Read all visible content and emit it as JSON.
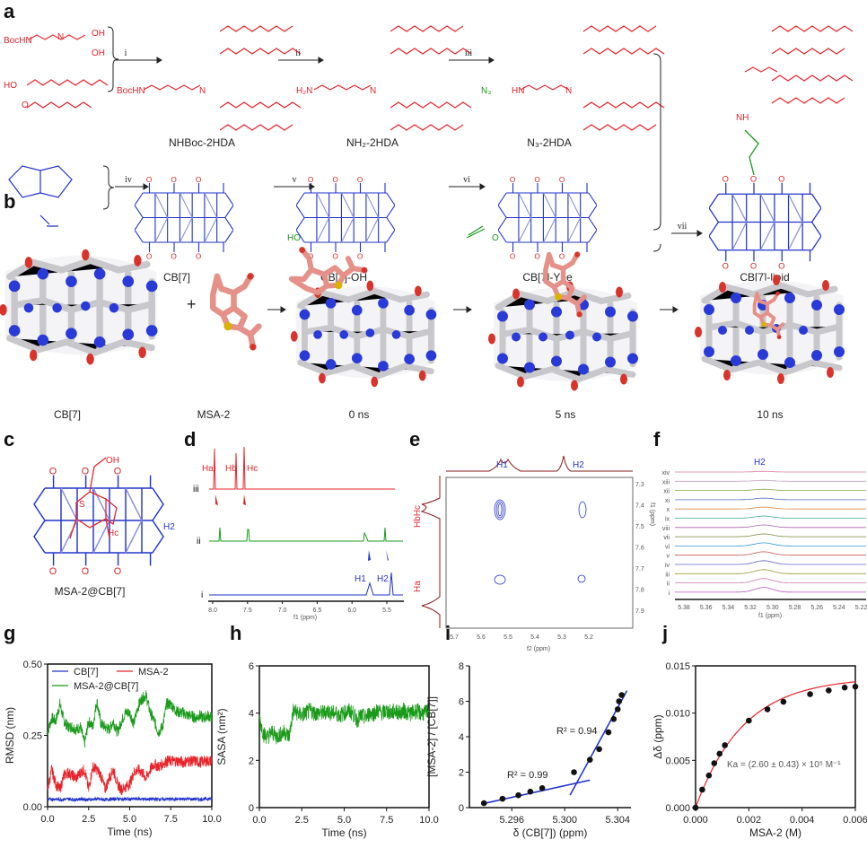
{
  "panel_labels": {
    "a": "a",
    "b": "b",
    "c": "c",
    "d": "d",
    "e": "e",
    "f": "f",
    "g": "g",
    "h": "h",
    "i": "i",
    "j": "j"
  },
  "scheme_a": {
    "compounds": {
      "nhboc": "NHBoc-2HDA",
      "nh2": "NH₂-2HDA",
      "n3": "N₃-2HDA",
      "cb7": "CB[7]",
      "cb7oh": "CB[7]-OH",
      "cb7yne": "CB[7]-Yne",
      "cb7lipid": "CB[7]-lipid"
    },
    "steps": [
      "i",
      "ii",
      "iii",
      "iv",
      "v",
      "vi",
      "vii"
    ],
    "atoms": {
      "bochn": "BocHN",
      "n": "N",
      "oh": "OH",
      "ho": "HO",
      "o": "O",
      "h2n": "H₂N",
      "n3": "N₃",
      "hn": "HN",
      "nh": "NH"
    }
  },
  "panel_b": {
    "captions": [
      "CB[7]",
      "MSA-2",
      "0 ns",
      "5 ns",
      "10 ns"
    ],
    "plus": "+"
  },
  "panel_c": {
    "caption": "MSA-2@CB[7]",
    "atoms": {
      "oh": "OH",
      "s": "S",
      "ha": "Ha",
      "hb": "Hb",
      "hc": "Hc",
      "h1": "H1",
      "h2": "H2",
      "o": "O"
    }
  },
  "panel_d": {
    "traces": [
      "iii",
      "ii",
      "i"
    ],
    "peaks": {
      "ha": "Ha",
      "hb": "Hb",
      "hc": "Hc",
      "h1": "H1",
      "h2": "H2"
    },
    "ticks": [
      "8.0",
      "7.5",
      "7.0",
      "6.5",
      "6.0",
      "5.5"
    ],
    "xlabel": "f1 (ppm)"
  },
  "panel_e": {
    "top_peaks": [
      "H1",
      "H2"
    ],
    "side_peaks": [
      "HbHc",
      "Ha"
    ],
    "xticks": [
      "5.7",
      "5.6",
      "5.5",
      "5.4",
      "5.3",
      "5.2"
    ],
    "yticks": [
      "7.3",
      "7.4",
      "7.5",
      "7.6",
      "7.7",
      "7.8",
      "7.9"
    ],
    "xlabel": "f2 (ppm)",
    "ylabel": "f1 (ppm)"
  },
  "panel_f": {
    "peak": "H2",
    "traces": [
      "xiv",
      "xiii",
      "xii",
      "xi",
      "x",
      "ix",
      "viii",
      "vii",
      "vi",
      "v",
      "iv",
      "iii",
      "ii",
      "i"
    ],
    "ticks": [
      "5.38",
      "5.36",
      "5.34",
      "5.32",
      "5.30",
      "5.28",
      "5.26",
      "5.24",
      "5.22"
    ],
    "xlabel": "f1 (ppm)"
  },
  "colors": {
    "red": "#e8232a",
    "blue": "#2233cc",
    "green": "#1a9a1a",
    "brown": "#8b1a1a"
  },
  "chart_data": [
    {
      "id": "g",
      "type": "line",
      "xlabel": "Time (ns)",
      "ylabel": "RMSD (nm)",
      "xlim": [
        0,
        10
      ],
      "ylim": [
        0,
        0.5
      ],
      "xticks": [
        "0.0",
        "2.5",
        "5.0",
        "7.5",
        "10.0"
      ],
      "yticks": [
        "0.00",
        "0.25",
        "0.50"
      ],
      "legend": "top-left",
      "x_step": 0.25,
      "series": [
        {
          "name": "CB[7]",
          "color": "#2233cc",
          "values": [
            0.025,
            0.026,
            0.027,
            0.025,
            0.026,
            0.027,
            0.026,
            0.025,
            0.027,
            0.026,
            0.025,
            0.026,
            0.027,
            0.026,
            0.025,
            0.026,
            0.027,
            0.028,
            0.026,
            0.027,
            0.026,
            0.027,
            0.028,
            0.027,
            0.026,
            0.027,
            0.026,
            0.027,
            0.026,
            0.027,
            0.026,
            0.027,
            0.026,
            0.027,
            0.028,
            0.026,
            0.027,
            0.026,
            0.027,
            0.028,
            0.027
          ]
        },
        {
          "name": "MSA-2",
          "color": "#e8232a",
          "values": [
            0.06,
            0.13,
            0.08,
            0.06,
            0.11,
            0.12,
            0.11,
            0.1,
            0.12,
            0.13,
            0.06,
            0.14,
            0.13,
            0.11,
            0.06,
            0.1,
            0.13,
            0.08,
            0.06,
            0.07,
            0.08,
            0.12,
            0.13,
            0.12,
            0.1,
            0.13,
            0.15,
            0.14,
            0.15,
            0.16,
            0.16,
            0.16,
            0.16,
            0.155,
            0.16,
            0.16,
            0.16,
            0.155,
            0.16,
            0.16,
            0.16
          ]
        },
        {
          "name": "MSA-2@CB[7]",
          "color": "#1a9a1a",
          "values": [
            0.26,
            0.31,
            0.3,
            0.36,
            0.3,
            0.28,
            0.28,
            0.27,
            0.28,
            0.22,
            0.3,
            0.28,
            0.37,
            0.29,
            0.28,
            0.27,
            0.3,
            0.26,
            0.3,
            0.33,
            0.33,
            0.29,
            0.35,
            0.38,
            0.39,
            0.33,
            0.3,
            0.26,
            0.28,
            0.36,
            0.36,
            0.34,
            0.33,
            0.33,
            0.32,
            0.32,
            0.31,
            0.32,
            0.31,
            0.32,
            0.31
          ]
        }
      ]
    },
    {
      "id": "h",
      "type": "line",
      "xlabel": "Time (ns)",
      "ylabel": "SASA (nm²)",
      "xlim": [
        0,
        10
      ],
      "ylim": [
        0,
        6
      ],
      "xticks": [
        "0.0",
        "2.5",
        "5.0",
        "7.5",
        "10.0"
      ],
      "yticks": [
        "0",
        "2",
        "4",
        "6"
      ],
      "x_step": 0.25,
      "series": [
        {
          "name": "SASA",
          "color": "#1a9a1a",
          "values": [
            3.8,
            3.1,
            3.0,
            3.2,
            3.0,
            3.1,
            3.2,
            3.0,
            4.1,
            4.0,
            3.9,
            4.0,
            4.1,
            4.0,
            4.0,
            4.0,
            4.1,
            4.0,
            4.0,
            3.9,
            4.0,
            4.1,
            4.0,
            3.7,
            3.9,
            3.8,
            4.0,
            4.0,
            4.1,
            4.0,
            4.1,
            4.0,
            4.1,
            4.0,
            4.1,
            4.0,
            4.0,
            4.1,
            4.0,
            4.0,
            4.1
          ]
        }
      ]
    },
    {
      "id": "i",
      "type": "scatter",
      "xlabel": "δ (CB[7]) (ppm)",
      "ylabel": "[MSA-2] / [CB[7]]",
      "xlim": [
        5.2928,
        5.305
      ],
      "ylim": [
        0,
        8
      ],
      "xticks": [
        5.296,
        5.3,
        5.304
      ],
      "xtick_labels": [
        "5.296",
        "5.300",
        "5.304"
      ],
      "yticks": [
        "0",
        "2",
        "4",
        "6",
        "8"
      ],
      "x": [
        5.2939,
        5.2953,
        5.2965,
        5.2974,
        5.2983,
        5.3007,
        5.3019,
        5.3026,
        5.3033,
        5.3037,
        5.304,
        5.3041,
        5.3043
      ],
      "y": [
        0.25,
        0.5,
        0.7,
        0.9,
        1.1,
        2.0,
        2.7,
        3.3,
        4.25,
        5.0,
        5.55,
        6.0,
        6.35
      ],
      "fits": [
        {
          "label": "R² = 0.99",
          "from": [
            5.2937,
            0.2
          ],
          "to": [
            5.3019,
            1.55
          ]
        },
        {
          "label": "R² = 0.94",
          "from": [
            5.3004,
            0.7
          ],
          "to": [
            5.3047,
            6.6
          ]
        }
      ]
    },
    {
      "id": "j",
      "type": "scatter",
      "xlabel": "MSA-2 (M)",
      "ylabel": "Δδ (ppm)",
      "xlim": [
        0,
        0.006
      ],
      "ylim": [
        0,
        0.015
      ],
      "xticks": [
        "0.000",
        "0.002",
        "0.004",
        "0.006"
      ],
      "yticks": [
        "0.000",
        "0.005",
        "0.010",
        "0.015"
      ],
      "x": [
        0,
        0.00025,
        0.0005,
        0.0007,
        0.0009,
        0.0011,
        0.002,
        0.0027,
        0.0033,
        0.0043,
        0.005,
        0.0056,
        0.006
      ],
      "y": [
        0,
        0.0019,
        0.0034,
        0.0047,
        0.0057,
        0.0066,
        0.0092,
        0.0104,
        0.0112,
        0.012,
        0.0124,
        0.0127,
        0.0128
      ],
      "fit": {
        "color": "#e8232a",
        "bmax": 0.0138,
        "k": 0.0018
      },
      "annotation": "Ka = (2.60 ± 0.43) × 10⁵ M⁻¹"
    }
  ]
}
